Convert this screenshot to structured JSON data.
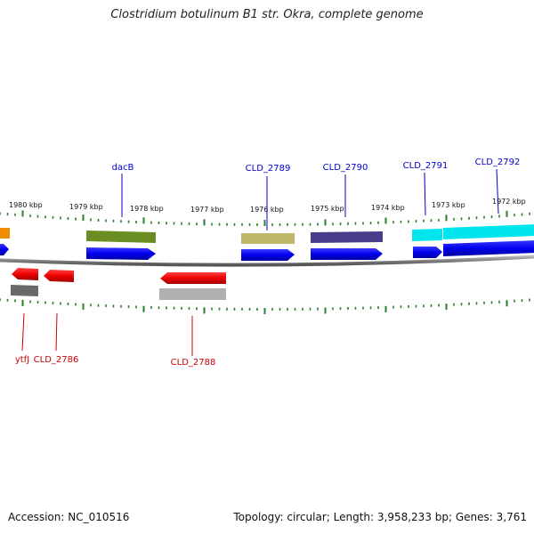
{
  "title": "Clostridium botulinum B1 str. Okra, complete genome",
  "accession": "Accession: NC_010516",
  "summary": "Topology: circular; Length: 3,958,233 bp; Genes: 3,761",
  "ticks": [
    "1980 kbp",
    "1979 kbp",
    "1978 kbp",
    "1977 kbp",
    "1976 kbp",
    "1975 kbp",
    "1974 kbp",
    "1973 kbp",
    "1972 kbp"
  ],
  "forward_labels": [
    "dacB",
    "CLD_2789",
    "CLD_2790",
    "CLD_2791",
    "CLD_2792"
  ],
  "reverse_labels": [
    "ytfJ",
    "CLD_2786",
    "CLD_2788"
  ],
  "colors": {
    "forward_gene": "#0000ee",
    "reverse_gene": "#ee0000",
    "forward_label": "#0000cc",
    "reverse_label": "#cc0000",
    "backbone": "#808080",
    "tick": "#2e7d2e",
    "feature_olive": "#6b8e23",
    "feature_khaki": "#bdb76b",
    "feature_slate": "#483d8b",
    "feature_cyan": "#00e5ee",
    "feature_orange": "#f08c00",
    "feature_darkgray": "#696969",
    "feature_lightgray": "#b0b0b0"
  }
}
